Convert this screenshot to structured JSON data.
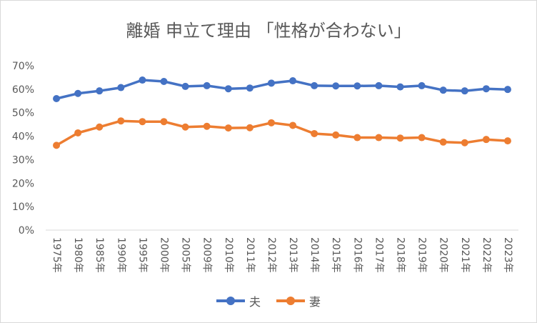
{
  "chart_data": {
    "type": "line",
    "title": "離婚 申立て理由 「性格が合わない」",
    "categories": [
      "1975年",
      "1980年",
      "1985年",
      "1990年",
      "1995年",
      "2000年",
      "2005年",
      "2009年",
      "2010年",
      "2011年",
      "2012年",
      "2013年",
      "2014年",
      "2015年",
      "2016年",
      "2017年",
      "2018年",
      "2019年",
      "2020年",
      "2021年",
      "2022年",
      "2023年"
    ],
    "y_ticks": [
      "0%",
      "10%",
      "20%",
      "30%",
      "40%",
      "50%",
      "60%",
      "70%"
    ],
    "ylim": [
      0,
      70
    ],
    "grid": false,
    "legend_position": "bottom",
    "series": [
      {
        "name": "夫",
        "color": "#4472C4",
        "values": [
          56.0,
          58.2,
          59.3,
          60.7,
          63.9,
          63.3,
          61.2,
          61.5,
          60.2,
          60.5,
          62.6,
          63.6,
          61.5,
          61.4,
          61.4,
          61.5,
          61.0,
          61.5,
          59.6,
          59.3,
          60.2,
          59.9
        ]
      },
      {
        "name": "妻",
        "color": "#ED7D31",
        "values": [
          36.1,
          41.4,
          43.9,
          46.5,
          46.2,
          46.2,
          43.9,
          44.2,
          43.5,
          43.6,
          45.7,
          44.6,
          41.1,
          40.5,
          39.4,
          39.4,
          39.2,
          39.4,
          37.5,
          37.2,
          38.6,
          38.0
        ]
      }
    ]
  }
}
